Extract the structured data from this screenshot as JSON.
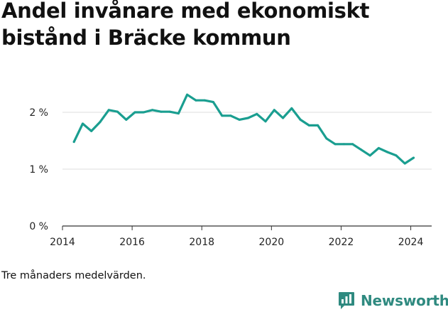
{
  "title": "Andel invånare med ekonomiskt bistånd i Bräcke kommun",
  "note": "Tre månaders medelvärden.",
  "brand": {
    "name": "Newsworthy",
    "icon": "bar-chart-speech-icon",
    "color": "#2f8a80"
  },
  "chart_data": {
    "type": "line",
    "title": "Andel invånare med ekonomiskt bistånd i Bräcke kommun",
    "xlabel": "",
    "ylabel": "",
    "xlim": [
      2014,
      2024.6
    ],
    "ylim": [
      0,
      2.6
    ],
    "x_ticks": [
      {
        "value": 2014,
        "label": "2014"
      },
      {
        "value": 2016,
        "label": "2016"
      },
      {
        "value": 2018,
        "label": "2018"
      },
      {
        "value": 2020,
        "label": "2020"
      },
      {
        "value": 2022,
        "label": "2022"
      },
      {
        "value": 2024,
        "label": "2024"
      }
    ],
    "y_ticks": [
      {
        "value": 0,
        "label": "0 %"
      },
      {
        "value": 1,
        "label": "1 %"
      },
      {
        "value": 2,
        "label": "2 %"
      }
    ],
    "grid": true,
    "legend": "none",
    "series": [
      {
        "color": "#1a9e90",
        "x": [
          2014.33,
          2014.58,
          2014.83,
          2015.08,
          2015.33,
          2015.58,
          2015.83,
          2016.08,
          2016.33,
          2016.58,
          2016.83,
          2017.08,
          2017.33,
          2017.58,
          2017.83,
          2018.08,
          2018.33,
          2018.58,
          2018.83,
          2019.08,
          2019.33,
          2019.58,
          2019.83,
          2020.08,
          2020.33,
          2020.58,
          2020.83,
          2021.08,
          2021.33,
          2021.58,
          2021.83,
          2022.08,
          2022.33,
          2022.58,
          2022.83,
          2023.08,
          2023.33,
          2023.58,
          2023.83,
          2024.08
        ],
        "y": [
          1.48,
          1.8,
          1.67,
          1.83,
          2.04,
          2.01,
          1.87,
          2.0,
          2.0,
          2.04,
          2.01,
          2.01,
          1.98,
          2.31,
          2.21,
          2.21,
          2.18,
          1.94,
          1.94,
          1.87,
          1.9,
          1.97,
          1.84,
          2.04,
          1.9,
          2.07,
          1.87,
          1.77,
          1.77,
          1.54,
          1.44,
          1.44,
          1.44,
          1.34,
          1.24,
          1.37,
          1.3,
          1.24,
          1.1,
          1.2
        ]
      }
    ]
  }
}
